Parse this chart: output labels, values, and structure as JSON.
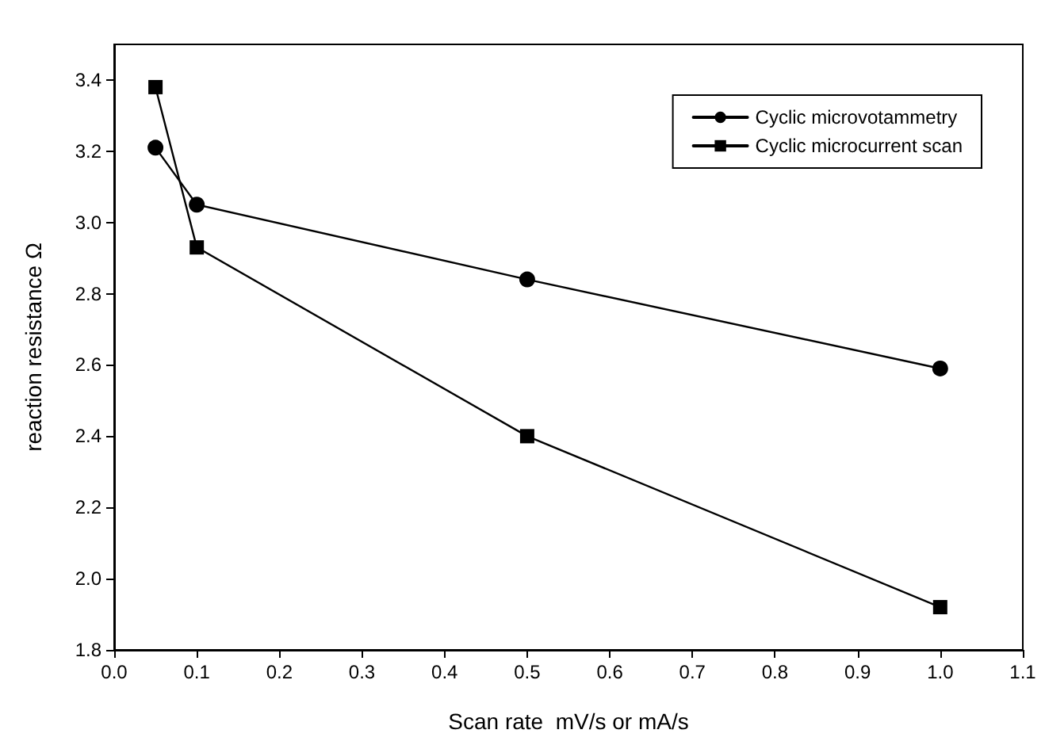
{
  "chart_data": {
    "type": "line",
    "xlabel": "Scan rate  mV/s or mA/s",
    "ylabel": "reaction resistance Ω",
    "x": [
      0.05,
      0.1,
      0.5,
      1.0
    ],
    "series": [
      {
        "name": "Cyclic microvotammetry",
        "color": "#000000",
        "marker": "circle",
        "values": [
          3.21,
          3.05,
          2.84,
          2.59
        ]
      },
      {
        "name": "Cyclic microcurrent scan",
        "color": "#000000",
        "marker": "square",
        "values": [
          3.38,
          2.93,
          2.4,
          1.92
        ]
      }
    ],
    "xlim": [
      0,
      1.1
    ],
    "xticks": [
      {
        "value": 0,
        "label": "0.0"
      },
      0.1,
      0.2,
      0.3,
      0.4,
      0.5,
      0.6,
      0.7,
      0.8,
      0.9,
      {
        "value": 1,
        "label": "1.0"
      },
      1.1
    ],
    "ylim": [
      1.8,
      3.5
    ],
    "yticks": [
      1.8,
      {
        "value": 2,
        "label": "2.0"
      },
      2.2,
      2.4,
      2.6,
      2.8,
      {
        "value": 3,
        "label": "3.0"
      },
      3.2,
      3.4
    ],
    "grid": false,
    "legend": "top right",
    "line_style": "solid"
  }
}
